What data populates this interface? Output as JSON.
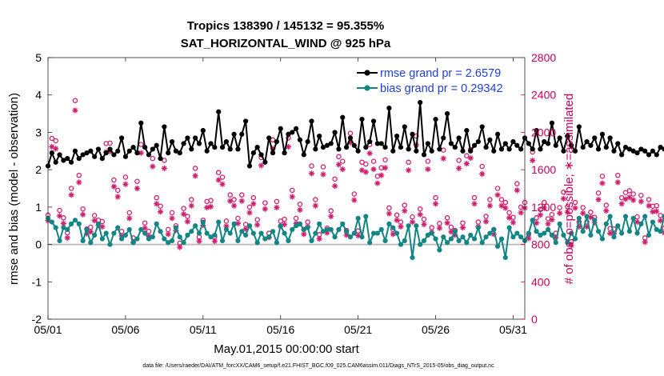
{
  "chart_data": {
    "type": "line",
    "title_line1": "Tropics 138390 / 145132 = 95.355%",
    "title_line2": "SAT_HORIZONTAL_WIND @ 925 hPa",
    "xlabel": "May.01,2015 00:00:00 start",
    "ylabel_left": "rmse and bias (model - observation)",
    "ylabel_right": "# of obs: o=possible; ∗=assimilated",
    "footnote": "data file: /Users/raeder/DAI/ATM_forcXX/CAM6_setup/f.e21.FHIST_BGC.f09_025.CAM6assim.011/Diags_NTrS_2015-05/obs_diag_output.nc",
    "x_tick_labels": [
      "05/01",
      "05/06",
      "05/11",
      "05/16",
      "05/21",
      "05/26",
      "05/31"
    ],
    "x_tick_days": [
      1,
      6,
      11,
      16,
      21,
      26,
      31
    ],
    "x_range_days": [
      1,
      31.75
    ],
    "left_y_range": [
      -2,
      5
    ],
    "left_y_ticks": [
      "-2",
      "-1",
      "0",
      "1",
      "2",
      "3",
      "4",
      "5"
    ],
    "right_y_range": [
      0,
      2800
    ],
    "right_y_ticks": [
      "0",
      "400",
      "800",
      "1200",
      "1600",
      "2000",
      "2400",
      "2800"
    ],
    "points_per_day": 4,
    "zero_line": 0,
    "series": [
      {
        "name": "rmse",
        "legend": "rmse grand pr = 2.6579",
        "color": "#000000",
        "axis": "left",
        "values": [
          2.1,
          2.45,
          2.2,
          2.4,
          2.25,
          2.3,
          2.2,
          2.5,
          2.3,
          2.4,
          2.45,
          2.5,
          2.35,
          2.55,
          2.3,
          2.45,
          2.55,
          2.4,
          2.5,
          2.85,
          2.35,
          2.5,
          2.6,
          2.45,
          3.25,
          2.6,
          2.4,
          2.55,
          2.65,
          2.3,
          3.15,
          2.45,
          2.75,
          2.5,
          2.45,
          2.7,
          2.85,
          2.55,
          2.85,
          2.7,
          3.05,
          2.5,
          2.7,
          2.6,
          3.55,
          2.6,
          2.75,
          2.55,
          2.95,
          2.55,
          2.95,
          3.3,
          2.1,
          2.45,
          2.6,
          2.4,
          2.2,
          2.85,
          2.45,
          2.75,
          3.1,
          2.45,
          2.95,
          3.0,
          3.1,
          2.8,
          2.4,
          2.75,
          3.3,
          2.55,
          2.9,
          2.6,
          2.65,
          2.7,
          3.0,
          2.55,
          3.4,
          2.6,
          2.85,
          2.65,
          2.5,
          3.35,
          2.6,
          2.75,
          3.3,
          2.7,
          2.7,
          2.6,
          3.65,
          2.5,
          2.9,
          2.6,
          3.15,
          2.55,
          2.95,
          2.5,
          3.8,
          2.4,
          2.7,
          2.5,
          3.35,
          2.55,
          2.85,
          3.5,
          2.7,
          2.6,
          2.85,
          2.5,
          3.05,
          2.5,
          2.65,
          2.75,
          3.15,
          2.6,
          2.8,
          2.5,
          2.95,
          2.55,
          2.7,
          2.55,
          2.75,
          2.65,
          2.55,
          2.85,
          2.7,
          2.55,
          3.05,
          2.55,
          2.75,
          2.7,
          3.25,
          2.65,
          2.85,
          2.5,
          2.9,
          2.65,
          2.5,
          3.15,
          2.6,
          2.75,
          2.65,
          2.85,
          2.55,
          2.95,
          2.6,
          2.85,
          2.5,
          2.7,
          2.4,
          2.6,
          2.55,
          2.5,
          2.45,
          2.55,
          2.5,
          2.4,
          2.5,
          2.4,
          2.6,
          2.55,
          2.45,
          2.4,
          2.55,
          2.25,
          2.2,
          2.2,
          2.25,
          2.3,
          2.45,
          2.55,
          2.4,
          2.65,
          2.6,
          2.55,
          2.5,
          2.55,
          2.45,
          2.5,
          2.55,
          2.4,
          2.5,
          2.45,
          2.35,
          2.2,
          2.4,
          2.6,
          2.45,
          2.5,
          2.55,
          2.35,
          2.6,
          2.35,
          2.2,
          2.6,
          2.5,
          2.3,
          2.15
        ]
      },
      {
        "name": "bias",
        "legend": "bias grand pr = 0.29342",
        "color": "#138585",
        "axis": "left",
        "values": [
          0.7,
          0.6,
          0.45,
          0.1,
          0.45,
          0.4,
          0.55,
          0.65,
          0.55,
          0.1,
          0.4,
          0.05,
          0.25,
          0.55,
          0.15,
          0.3,
          0.0,
          0.3,
          0.45,
          0.15,
          0.25,
          0.4,
          0.05,
          0.15,
          0.4,
          0.3,
          0.15,
          0.2,
          0.55,
          0.35,
          0.15,
          0.05,
          0.1,
          0.45,
          0.2,
          0.05,
          0.25,
          0.35,
          0.5,
          0.3,
          0.6,
          0.3,
          0.2,
          0.25,
          0.6,
          0.1,
          0.4,
          0.3,
          0.55,
          0.1,
          0.35,
          0.25,
          0.5,
          0.3,
          0.05,
          0.3,
          0.15,
          0.2,
          0.35,
          0.05,
          0.5,
          0.3,
          0.1,
          0.4,
          0.5,
          0.55,
          0.4,
          0.45,
          0.1,
          0.3,
          0.55,
          0.35,
          0.4,
          0.4,
          0.2,
          0.4,
          0.55,
          0.35,
          0.2,
          0.3,
          0.7,
          0.2,
          0.75,
          0.05,
          0.3,
          0.3,
          0.4,
          0.1,
          0.55,
          0.45,
          0.3,
          0.0,
          0.1,
          0.5,
          -0.35,
          0.5,
          0.0,
          0.1,
          0.25,
          0.3,
          0.15,
          -0.15,
          0.2,
          0.05,
          0.15,
          0.35,
          0.1,
          0.2,
          0.05,
          0.25,
          0.15,
          0.45,
          0.05,
          0.2,
          0.3,
          0.4,
          -0.05,
          0.15,
          -0.35,
          0.45,
          0.2,
          0.3,
          0.2,
          0.1,
          0.3,
          0.65,
          0.35,
          0.25,
          0.3,
          0.4,
          0.25,
          0.05,
          0.55,
          0.25,
          0.05,
          0.3,
          0.15,
          0.7,
          0.35,
          0.75,
          0.25,
          0.65,
          0.35,
          0.15,
          0.55,
          0.75,
          0.2,
          0.5,
          0.3,
          0.75,
          0.35,
          0.7,
          0.3,
          0.55,
          0.75,
          0.25,
          0.6,
          0.4,
          0.35,
          0.75,
          0.7,
          0.3,
          0.6,
          0.75,
          0.4,
          0.2,
          0.75,
          0.45,
          0.6,
          0.3,
          0.7,
          0.3,
          0.5,
          0.5,
          0.25,
          0.75,
          0.4,
          0.7,
          0.15,
          0.6,
          1.05,
          0.3,
          0.8,
          0.75,
          0.6,
          0.45,
          0.4,
          0.65,
          0.5,
          0.7,
          0.3,
          0.5,
          0.75,
          0.4,
          0.25,
          0.65,
          0.45,
          0.35,
          0.15,
          0.35
        ]
      },
      {
        "name": "possible",
        "legend": "",
        "color": "#d01e6e",
        "axis": "right",
        "marker": "circle",
        "values": [
          1115,
          1935,
          1910,
          1165,
          1085,
          925,
          1400,
          2340,
          1540,
          1180,
          965,
          985,
          1110,
          1060,
          1045,
          1880,
          1885,
          1490,
          1380,
          940,
          1520,
          1140,
          870,
          1475,
          1870,
          1030,
          940,
          1720,
          1300,
          1210,
          1700,
          960,
          1140,
          1000,
          815,
          1185,
          1100,
          1280,
          1615,
          880,
          1060,
          1260,
          1270,
          880,
          1570,
          1520,
          1050,
          1330,
          1280,
          1080,
          1330,
          1015,
          1200,
          1300,
          1065,
          1730,
          1245,
          920,
          1920,
          1260,
          1050,
          1070,
          1940,
          1380,
          1080,
          1230,
          960,
          1040,
          1640,
          1280,
          905,
          1630,
          975,
          1160,
          1500,
          1740,
          1690,
          950,
          1990,
          1340,
          945,
          1680,
          1660,
          1870,
          1690,
          1530,
          1620,
          1705,
          1190,
          960,
          1115,
          1040,
          1220,
          1680,
          1095,
          1960,
          1180,
          1070,
          1690,
          980,
          1300,
          1025,
          1810,
          1085,
          985,
          950,
          1700,
          1030,
          1750,
          1815,
          1300,
          1040,
          1635,
          1100,
          1280,
          960,
          1400,
          1280,
          1250,
          1140,
          1090,
          1450,
          1200,
          1250,
          910,
          1790,
          1085,
          1175,
          1250,
          1075,
          1120,
          920,
          1195,
          1360,
          1205,
          830,
          1250,
          1040,
          1195,
          1040,
          1145,
          1090,
          1350,
          1530,
          1220,
          970,
          965,
          1540,
          1300,
          1355,
          1375,
          1340,
          1095,
          1325,
          870,
          1280,
          1210,
          1215,
          1110,
          975,
          1080,
          1020,
          1070,
          960,
          1225,
          1430,
          1045,
          1020,
          1460,
          1490,
          1210,
          1160,
          940,
          1505,
          1470,
          1340,
          1540,
          1155,
          1270,
          1400,
          1000,
          1215,
          1325,
          1050,
          1480,
          1270,
          1310,
          1040,
          1200,
          1060,
          1040,
          0
        ]
      },
      {
        "name": "assimilated",
        "legend": "",
        "color": "#d01e6e",
        "axis": "right",
        "marker": "asterisk",
        "values": [
          1055,
          1845,
          1825,
          1105,
          1025,
          870,
          1330,
          2235,
          1465,
          1120,
          915,
          935,
          1055,
          1005,
          990,
          1790,
          1795,
          1420,
          1310,
          890,
          1445,
          1080,
          825,
          1400,
          1780,
          975,
          890,
          1635,
          1235,
          1150,
          1615,
          910,
          1080,
          950,
          770,
          1125,
          1045,
          1215,
          1535,
          835,
          1005,
          1195,
          1205,
          835,
          1490,
          1445,
          995,
          1265,
          1215,
          1025,
          1265,
          965,
          1140,
          1235,
          1010,
          1645,
          1180,
          875,
          1825,
          1195,
          995,
          1015,
          1845,
          1310,
          1025,
          1170,
          910,
          990,
          1560,
          1215,
          860,
          1550,
          925,
          1100,
          1425,
          1655,
          1605,
          900,
          1890,
          1275,
          895,
          1595,
          1575,
          1775,
          1605,
          1455,
          1540,
          1620,
          1130,
          910,
          1060,
          990,
          1160,
          1595,
          1040,
          1865,
          1120,
          1015,
          1605,
          930,
          1235,
          975,
          1720,
          1030,
          935,
          900,
          1615,
          980,
          1665,
          1725,
          1235,
          990,
          1555,
          1045,
          1215,
          910,
          1330,
          1215,
          1190,
          1085,
          1035,
          1380,
          1140,
          1190,
          865,
          1700,
          1030,
          1115,
          1190,
          1020,
          1065,
          875,
          1135,
          1290,
          1145,
          790,
          1190,
          990,
          1135,
          990,
          1090,
          1035,
          1280,
          1455,
          1160,
          920,
          915,
          1465,
          1235,
          1285,
          1305,
          1275,
          1040,
          1260,
          825,
          1215,
          1150,
          1155,
          1055,
          925,
          1025,
          970,
          1015,
          910,
          1165,
          1360,
          995,
          970,
          1385,
          1415,
          1150,
          1100,
          895,
          1430,
          1395,
          1275,
          1465,
          1095,
          1205,
          1330,
          950,
          1155,
          1260,
          1000,
          1405,
          1205,
          1245,
          990,
          1140,
          1005,
          990,
          0
        ]
      }
    ]
  }
}
